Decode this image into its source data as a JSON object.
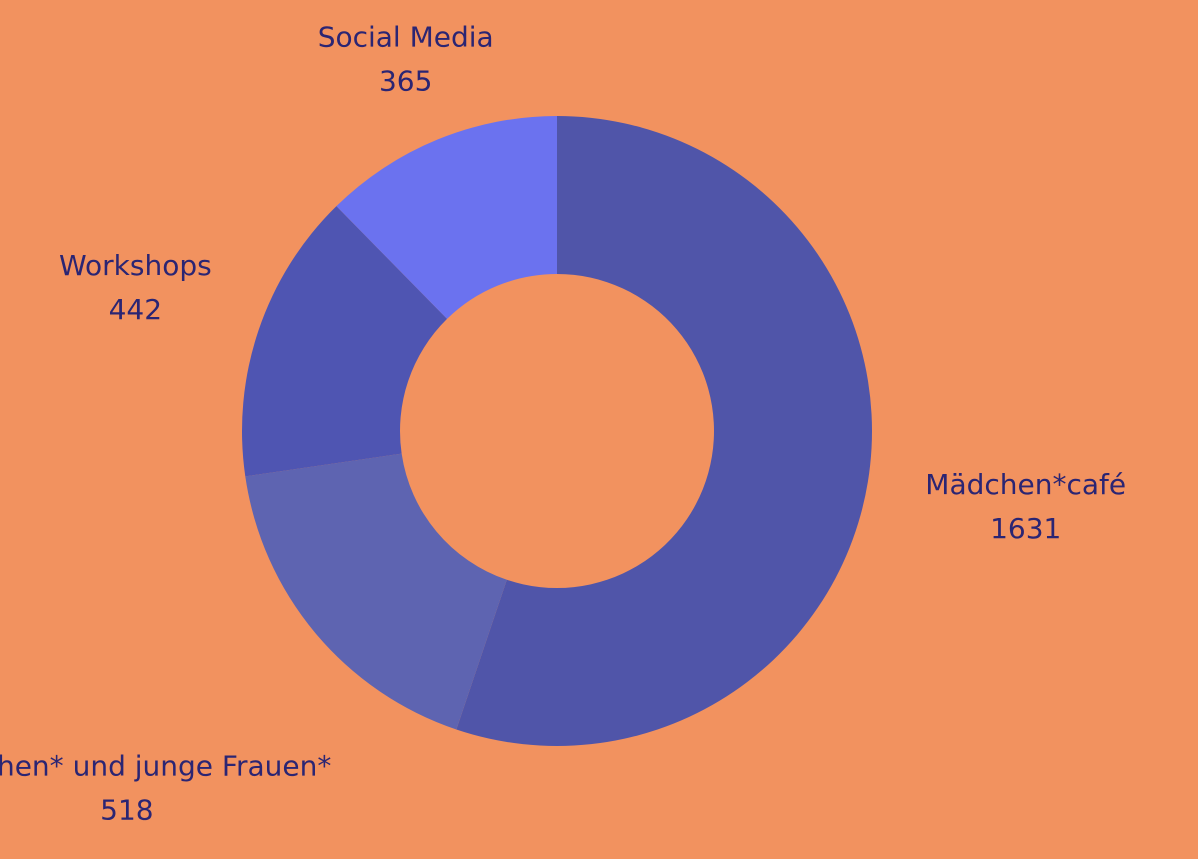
{
  "chart_data": {
    "type": "donut",
    "categories": [
      "Mädchen*café",
      "Mädchen* und junge Frauen*",
      "Workshops",
      "Social Media"
    ],
    "values": [
      1631,
      518,
      442,
      365
    ],
    "colors": [
      "#5055a9",
      "#5e64b1",
      "#4f55b2",
      "#6b72ef"
    ]
  }
}
